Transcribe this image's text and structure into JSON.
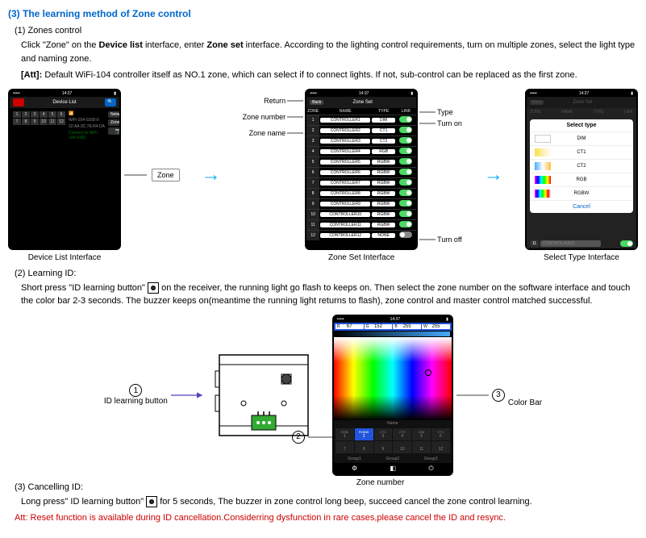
{
  "title": "(3) The learning method of Zone control",
  "s1": {
    "heading": "(1) Zones control",
    "p1a": "Click \"Zone\" on the ",
    "p1b": "Device list",
    "p1c": " interface, enter ",
    "p1d": "Zone set",
    "p1e": " interface. According to the lighting control requirements, turn on multiple zones, select the light type and naming zone.",
    "att_label": "[Att]:",
    "att_text": " Default WiFi-104 controller itself as NO.1 zone, which can select if to connect lights. If not, sub-control can be replaced as the first zone."
  },
  "fig1": {
    "status_time": "14:37",
    "device_list_title": "Device List",
    "zone_box": "Zone",
    "caption": "Device List Interface",
    "ssid": "WiFi-104-SSID-II",
    "mac": "32:AA:3C:7E:R4:DA",
    "conn": "Connect to WiFi: 104-SSID",
    "net_btn": "Network",
    "zone_btn": "Zone"
  },
  "fig2": {
    "back": "Back",
    "title": "Zone Set",
    "cols": {
      "zone": "ZONE",
      "name": "NAME",
      "type": "TYPE",
      "link": "LINK"
    },
    "rows": [
      {
        "n": "1",
        "name": "CONTROLLER1",
        "type": "DIM",
        "on": true
      },
      {
        "n": "2",
        "name": "CONTROLLER2",
        "type": "CT1",
        "on": true
      },
      {
        "n": "3",
        "name": "CONTROLLER3",
        "type": "CT2",
        "on": true
      },
      {
        "n": "4",
        "name": "CONTROLLER4",
        "type": "RGB",
        "on": true
      },
      {
        "n": "5",
        "name": "CONTROLLER5",
        "type": "RGBW",
        "on": true
      },
      {
        "n": "6",
        "name": "CONTROLLER6",
        "type": "RGBW",
        "on": true
      },
      {
        "n": "7",
        "name": "CONTROLLER7",
        "type": "RGBW",
        "on": true
      },
      {
        "n": "8",
        "name": "CONTROLLER8",
        "type": "RGBW",
        "on": true
      },
      {
        "n": "9",
        "name": "CONTROLLER9",
        "type": "RGBW",
        "on": true
      },
      {
        "n": "10",
        "name": "CONTROLLER10",
        "type": "RGBW",
        "on": true
      },
      {
        "n": "11",
        "name": "CONTROLLER11",
        "type": "RGBW",
        "on": true
      },
      {
        "n": "12",
        "name": "CONTROLLER12",
        "type": "NONE",
        "on": false
      }
    ],
    "caption": "Zone Set Interface",
    "callouts": {
      "return": "Return",
      "zone_number": "Zone number",
      "zone_name": "Zone name",
      "type": "Type",
      "turn_on": "Turn on",
      "turn_off": "Turn off"
    }
  },
  "fig3": {
    "title": "Zone Set",
    "select_type": "Select type",
    "options": [
      {
        "label": "DIM",
        "swatch_class": "gradient-dim"
      },
      {
        "label": "CT1",
        "swatch_class": "gradient-ct1"
      },
      {
        "label": "CT2",
        "swatch_class": "gradient-ct2"
      },
      {
        "label": "RGB",
        "swatch_class": "gradient-rgb"
      },
      {
        "label": "RGBW",
        "swatch_class": "gradient-rgbw"
      }
    ],
    "cancel": "Cancel",
    "caption": "Select Type Interface"
  },
  "s2": {
    "heading": "(2) Learning ID:",
    "p1a": "Short press \"ID learning button\" ",
    "p1b": " on the receiver, the running light go flash to keeps on. Then select the zone number on the software interface and touch the color bar 2-3 seconds. The buzzer keeps on(meantime the running light returns to flash), zone control and master control matched successful."
  },
  "receiver": {
    "id_btn_label": "ID learning button",
    "marker1": "1"
  },
  "colorpicker": {
    "r": "67",
    "g": "152",
    "b": "255",
    "w": "255",
    "r_label": "R",
    "g_label": "G",
    "b_label": "B",
    "w_label": "W",
    "name_label": "Name",
    "zones": [
      {
        "top": "RGB",
        "bot": "DIM",
        "n": "1"
      },
      {
        "top": "RGBW",
        "bot": "RGBW",
        "n": "2",
        "active": true
      },
      {
        "top": "CT1",
        "bot": "RGBW",
        "n": "3"
      },
      {
        "top": "CT2",
        "bot": "RGBW",
        "n": "4"
      },
      {
        "top": "DIM",
        "bot": "RGBW",
        "n": "5"
      },
      {
        "top": "CT1",
        "bot": "RGBW",
        "n": "6"
      },
      {
        "top": "",
        "bot": "",
        "n": "7"
      },
      {
        "top": "",
        "bot": "",
        "n": "8"
      },
      {
        "top": "",
        "bot": "",
        "n": "9"
      },
      {
        "top": "",
        "bot": "",
        "n": "10"
      },
      {
        "top": "",
        "bot": "",
        "n": "11"
      },
      {
        "top": "",
        "bot": "",
        "n": "12"
      }
    ],
    "groups": [
      "Group1",
      "Group2",
      "Group3"
    ],
    "callouts": {
      "zone_number": "Zone number",
      "color_bar": "Color Bar",
      "m2": "2",
      "m3": "3"
    }
  },
  "s3": {
    "heading": "(3) Cancelling ID:",
    "p1a": "Long press\" ID learning button\" ",
    "p1b": " for 5 seconds, The buzzer in zone control long beep, succeed cancel the zone control learning.",
    "warn": "Att: Reset function is available during ID cancellation.Considerring dysfunction in rare cases,please cancel the ID and resync."
  }
}
